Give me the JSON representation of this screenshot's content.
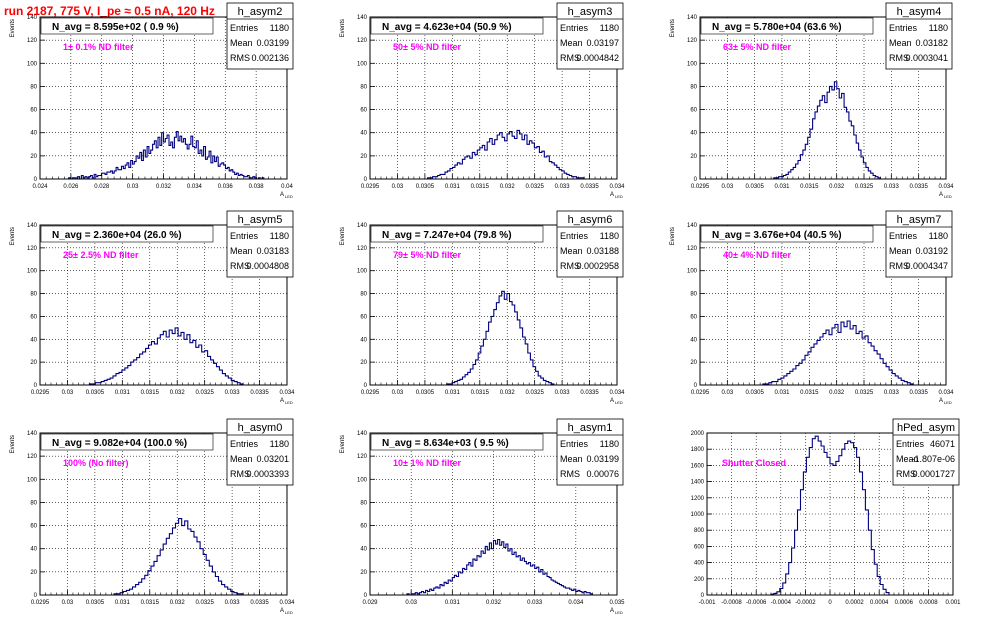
{
  "canvas_title": "run 2187,   775 V, I_pe ≈ 0.5 nA, 120 Hz",
  "colors": {
    "title": "#ff0000",
    "histogram": "#000080",
    "annotation": "#ff00ff",
    "frame": "#000000",
    "grid": "#000000"
  },
  "chart_data": [
    {
      "type": "histogram",
      "name": "h_asym2",
      "navg_label": "N_avg = 8.595e+02 ( 0.9 %)",
      "filter_label": "1± 0.1% ND filter",
      "stats": {
        "Entries": "1180",
        "Mean": "0.03199",
        "RMS": "0.002136"
      },
      "ylabel": "Events",
      "xlabel": "A",
      "xlabel_sub": "LED",
      "xlim": [
        0.024,
        0.04
      ],
      "ylim": [
        0,
        140
      ],
      "xticks": [
        "0.024",
        "0.026",
        "0.028",
        "0.03",
        "0.032",
        "0.034",
        "0.036",
        "0.038",
        "0.04"
      ],
      "yticks": [
        "0",
        "20",
        "40",
        "60",
        "80",
        "100",
        "120",
        "140"
      ],
      "bins": {
        "x_start": 0.0255,
        "x_end": 0.0385,
        "counts": [
          0,
          0,
          0,
          1,
          0,
          1,
          1,
          0,
          2,
          0,
          3,
          1,
          2,
          1,
          2,
          3,
          1,
          4,
          2,
          3,
          3,
          5,
          5,
          4,
          6,
          6,
          7,
          5,
          7,
          10,
          8,
          8,
          11,
          9,
          12,
          14,
          10,
          16,
          13,
          15,
          20,
          18,
          23,
          16,
          25,
          19,
          28,
          22,
          25,
          30,
          33,
          27,
          36,
          29,
          40,
          32,
          35,
          38,
          29,
          32,
          27,
          36,
          41,
          33,
          37,
          32,
          35,
          30,
          26,
          30,
          37,
          28,
          27,
          33,
          22,
          25,
          20,
          28,
          17,
          19,
          24,
          14,
          20,
          15,
          19,
          11,
          13,
          14,
          12,
          9,
          10,
          7,
          8,
          6,
          4,
          5,
          3,
          4,
          3,
          2,
          2,
          3,
          1,
          1,
          2,
          1,
          0,
          1,
          0,
          1
        ]
      }
    },
    {
      "type": "histogram",
      "name": "h_asym3",
      "navg_label": "N_avg = 4.623e+04 (50.9 %)",
      "filter_label": "50± 5% ND filter",
      "stats": {
        "Entries": "1180",
        "Mean": "0.03197",
        "RMS": "0.0004842"
      },
      "ylabel": "Events",
      "xlabel": "A",
      "xlabel_sub": "LED",
      "xlim": [
        0.0295,
        0.034
      ],
      "ylim": [
        0,
        140
      ],
      "xticks": [
        "0.0295",
        "0.03",
        "0.0305",
        "0.031",
        "0.0315",
        "0.032",
        "0.0325",
        "0.033",
        "0.0335",
        "0.034"
      ],
      "yticks": [
        "0",
        "20",
        "40",
        "60",
        "80",
        "100",
        "120",
        "140"
      ],
      "bins": {
        "x_start": 0.03055,
        "x_end": 0.0334,
        "counts": [
          1,
          1,
          2,
          2,
          3,
          4,
          4,
          6,
          7,
          9,
          10,
          12,
          14,
          13,
          17,
          19,
          20,
          18,
          23,
          21,
          25,
          27,
          29,
          25,
          32,
          35,
          30,
          34,
          38,
          40,
          36,
          33,
          39,
          41,
          37,
          35,
          42,
          39,
          34,
          38,
          30,
          33,
          31,
          27,
          28,
          23,
          24,
          19,
          20,
          15,
          14,
          12,
          10,
          8,
          7,
          5,
          4,
          3,
          2,
          2,
          1,
          1,
          1
        ]
      }
    },
    {
      "type": "histogram",
      "name": "h_asym4",
      "navg_label": "N_avg = 5.780e+04 (63.6 %)",
      "filter_label": "63± 5% ND filter",
      "stats": {
        "Entries": "1180",
        "Mean": "0.03182",
        "RMS": "0.0003041"
      },
      "ylabel": "Events",
      "xlabel": "A",
      "xlabel_sub": "LED",
      "xlim": [
        0.0295,
        0.034
      ],
      "ylim": [
        0,
        140
      ],
      "xticks": [
        "0.0295",
        "0.03",
        "0.0305",
        "0.031",
        "0.0315",
        "0.032",
        "0.0325",
        "0.033",
        "0.0335",
        "0.034"
      ],
      "yticks": [
        "0",
        "20",
        "40",
        "60",
        "80",
        "100",
        "120",
        "140"
      ],
      "bins": {
        "x_start": 0.03085,
        "x_end": 0.0328,
        "counts": [
          1,
          1,
          2,
          2,
          3,
          4,
          6,
          8,
          10,
          13,
          16,
          21,
          25,
          30,
          36,
          43,
          52,
          58,
          63,
          68,
          72,
          66,
          75,
          80,
          77,
          84,
          78,
          70,
          74,
          62,
          58,
          50,
          46,
          38,
          31,
          25,
          19,
          14,
          10,
          7,
          5,
          3,
          2,
          1
        ]
      }
    },
    {
      "type": "histogram",
      "name": "h_asym5",
      "navg_label": "N_avg = 2.360e+04 (26.0 %)",
      "filter_label": "25± 2.5% ND filter",
      "stats": {
        "Entries": "1180",
        "Mean": "0.03183",
        "RMS": "0.0004808"
      },
      "ylabel": "Events",
      "xlabel": "A",
      "xlabel_sub": "LED",
      "xlim": [
        0.0295,
        0.034
      ],
      "ylim": [
        0,
        140
      ],
      "xticks": [
        "0.0295",
        "0.03",
        "0.0305",
        "0.031",
        "0.0315",
        "0.032",
        "0.0325",
        "0.033",
        "0.0335",
        "0.034"
      ],
      "yticks": [
        "0",
        "20",
        "40",
        "60",
        "80",
        "100",
        "120",
        "140"
      ],
      "bins": {
        "x_start": 0.0304,
        "x_end": 0.0332,
        "counts": [
          1,
          1,
          2,
          2,
          3,
          4,
          5,
          6,
          8,
          10,
          11,
          13,
          15,
          17,
          20,
          22,
          24,
          27,
          29,
          32,
          35,
          38,
          36,
          41,
          44,
          47,
          42,
          48,
          45,
          50,
          43,
          46,
          40,
          44,
          37,
          39,
          33,
          35,
          29,
          30,
          25,
          22,
          19,
          16,
          13,
          10,
          8,
          6,
          4,
          3,
          2,
          1
        ]
      }
    },
    {
      "type": "histogram",
      "name": "h_asym6",
      "navg_label": "N_avg = 7.247e+04 (79.8 %)",
      "filter_label": "79± 5% ND filter",
      "stats": {
        "Entries": "1180",
        "Mean": "0.03188",
        "RMS": "0.0002958"
      },
      "ylabel": "Events",
      "xlabel": "A",
      "xlabel_sub": "LED",
      "xlim": [
        0.0295,
        0.034
      ],
      "ylim": [
        0,
        140
      ],
      "xticks": [
        "0.0295",
        "0.03",
        "0.0305",
        "0.031",
        "0.0315",
        "0.032",
        "0.0325",
        "0.033",
        "0.0335",
        "0.034"
      ],
      "yticks": [
        "0",
        "20",
        "40",
        "60",
        "80",
        "100",
        "120",
        "140"
      ],
      "bins": {
        "x_start": 0.0309,
        "x_end": 0.03285,
        "counts": [
          1,
          1,
          2,
          3,
          4,
          5,
          7,
          9,
          11,
          14,
          18,
          22,
          28,
          34,
          40,
          47,
          55,
          60,
          66,
          72,
          78,
          82,
          75,
          80,
          73,
          70,
          64,
          57,
          50,
          42,
          36,
          28,
          22,
          16,
          12,
          8,
          6,
          4,
          3,
          2,
          1
        ]
      }
    },
    {
      "type": "histogram",
      "name": "h_asym7",
      "navg_label": "N_avg = 3.676e+04 (40.5 %)",
      "filter_label": "40± 4% ND filter",
      "stats": {
        "Entries": "1180",
        "Mean": "0.03192",
        "RMS": "0.0004347"
      },
      "ylabel": "Events",
      "xlabel": "A",
      "xlabel_sub": "LED",
      "xlim": [
        0.0295,
        0.034
      ],
      "ylim": [
        0,
        140
      ],
      "xticks": [
        "0.0295",
        "0.03",
        "0.0305",
        "0.031",
        "0.0315",
        "0.032",
        "0.0325",
        "0.033",
        "0.0335",
        "0.034"
      ],
      "yticks": [
        "0",
        "20",
        "40",
        "60",
        "80",
        "100",
        "120",
        "140"
      ],
      "bins": {
        "x_start": 0.03065,
        "x_end": 0.0334,
        "counts": [
          1,
          1,
          2,
          3,
          3,
          5,
          6,
          8,
          10,
          12,
          14,
          17,
          19,
          22,
          26,
          29,
          33,
          36,
          39,
          42,
          45,
          48,
          44,
          50,
          53,
          46,
          55,
          51,
          56,
          49,
          52,
          45,
          47,
          41,
          43,
          37,
          34,
          30,
          27,
          23,
          19,
          16,
          13,
          10,
          8,
          6,
          4,
          3,
          2,
          1
        ]
      }
    },
    {
      "type": "histogram",
      "name": "h_asym0",
      "navg_label": "N_avg = 9.082e+04 (100.0 %)",
      "filter_label": "100% (No filter)",
      "stats": {
        "Entries": "1180",
        "Mean": "0.03201",
        "RMS": "0.0003393"
      },
      "ylabel": "Events",
      "xlabel": "A",
      "xlabel_sub": "LED",
      "xlim": [
        0.0295,
        0.034
      ],
      "ylim": [
        0,
        140
      ],
      "xticks": [
        "0.0295",
        "0.03",
        "0.0305",
        "0.031",
        "0.0315",
        "0.032",
        "0.0325",
        "0.033",
        "0.0335",
        "0.034"
      ],
      "yticks": [
        "0",
        "20",
        "40",
        "60",
        "80",
        "100",
        "120",
        "140"
      ],
      "bins": {
        "x_start": 0.03085,
        "x_end": 0.0332,
        "counts": [
          1,
          1,
          2,
          3,
          4,
          5,
          7,
          9,
          11,
          14,
          17,
          21,
          25,
          29,
          34,
          39,
          44,
          49,
          53,
          58,
          62,
          66,
          60,
          64,
          57,
          55,
          50,
          46,
          40,
          35,
          30,
          25,
          20,
          16,
          12,
          9,
          7,
          5,
          3,
          2,
          1,
          1
        ]
      }
    },
    {
      "type": "histogram",
      "name": "h_asym1",
      "navg_label": "N_avg = 8.634e+03 ( 9.5 %)",
      "filter_label": "10± 1% ND filter",
      "stats": {
        "Entries": "1180",
        "Mean": "0.03199",
        "RMS": "0.00076"
      },
      "ylabel": "Events",
      "xlabel": "A",
      "xlabel_sub": "LED",
      "xlim": [
        0.029,
        0.035
      ],
      "ylim": [
        0,
        140
      ],
      "xticks": [
        "0.029",
        "0.03",
        "0.031",
        "0.032",
        "0.033",
        "0.034",
        "0.035"
      ],
      "yticks": [
        "0",
        "20",
        "40",
        "60",
        "80",
        "100",
        "120",
        "140"
      ],
      "bins": {
        "x_start": 0.0299,
        "x_end": 0.0344,
        "counts": [
          1,
          0,
          1,
          1,
          2,
          1,
          2,
          3,
          2,
          4,
          3,
          5,
          4,
          6,
          7,
          6,
          9,
          8,
          11,
          10,
          13,
          12,
          15,
          17,
          16,
          20,
          19,
          23,
          22,
          26,
          28,
          25,
          31,
          30,
          34,
          33,
          38,
          36,
          42,
          39,
          45,
          40,
          47,
          44,
          48,
          43,
          46,
          41,
          44,
          38,
          40,
          35,
          37,
          33,
          34,
          30,
          32,
          29,
          27,
          28,
          25,
          26,
          23,
          24,
          20,
          22,
          18,
          19,
          16,
          15,
          13,
          12,
          11,
          10,
          9,
          8,
          7,
          6,
          6,
          5,
          4,
          5,
          3,
          4,
          3,
          2,
          3,
          2,
          2,
          1
        ]
      }
    },
    {
      "type": "histogram",
      "name": "hPed_asym",
      "navg_label": "",
      "filter_label": "Shutter Closed",
      "stats": {
        "Entries": "46071",
        "Mean": "-1.807e-06",
        "RMS": "0.0001727"
      },
      "ylabel": "",
      "xlabel": "",
      "xlabel_sub": "",
      "xlim": [
        -0.001,
        0.001
      ],
      "ylim": [
        0,
        2000
      ],
      "xticks": [
        "-0.001",
        "-0.0008",
        "-0.0006",
        "-0.0004",
        "-0.0002",
        "0",
        "0.0002",
        "0.0004",
        "0.0006",
        "0.0008",
        "0.001"
      ],
      "yticks": [
        "0",
        "200",
        "400",
        "600",
        "800",
        "1000",
        "1200",
        "1400",
        "1600",
        "1800",
        "2000"
      ],
      "bins": {
        "x_start": -0.00048,
        "x_end": 0.00048,
        "counts": [
          10,
          20,
          40,
          80,
          150,
          260,
          400,
          580,
          800,
          1050,
          1300,
          1520,
          1700,
          1820,
          1930,
          1960,
          1900,
          1840,
          1760,
          1700,
          1620,
          1600,
          1650,
          1720,
          1800,
          1870,
          1900,
          1880,
          1820,
          1700,
          1520,
          1300,
          1050,
          800,
          560,
          380,
          230,
          130,
          70,
          30
        ]
      }
    }
  ]
}
